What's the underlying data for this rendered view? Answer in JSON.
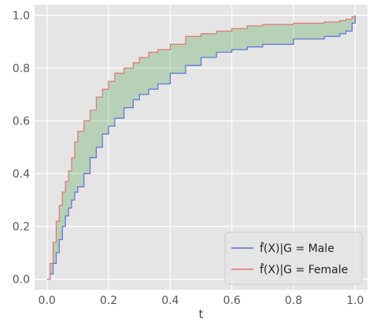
{
  "chart_data": {
    "type": "line",
    "title": "",
    "xlabel": "t",
    "ylabel": "",
    "xlim": [
      -0.04,
      1.04
    ],
    "ylim": [
      -0.04,
      1.04
    ],
    "xticks": [
      0.0,
      0.2,
      0.4,
      0.6,
      0.8,
      1.0
    ],
    "xtick_labels": [
      "0.0",
      "0.2",
      "0.4",
      "0.6",
      "0.8",
      "1.0"
    ],
    "yticks": [
      0.0,
      0.2,
      0.4,
      0.6,
      0.8,
      1.0
    ],
    "ytick_labels": [
      "0.0",
      "0.2",
      "0.4",
      "0.6",
      "0.8",
      "1.0"
    ],
    "grid": true,
    "legend_position": "lower-right",
    "fill_between": {
      "color": "#008000",
      "opacity": 0.2
    },
    "series": [
      {
        "name": "f̂(X)|G = Male",
        "color": "#5b6fd6",
        "x": [
          0.0,
          0.01,
          0.02,
          0.03,
          0.04,
          0.05,
          0.06,
          0.07,
          0.08,
          0.09,
          0.1,
          0.12,
          0.14,
          0.16,
          0.18,
          0.2,
          0.22,
          0.25,
          0.28,
          0.3,
          0.33,
          0.36,
          0.4,
          0.45,
          0.5,
          0.55,
          0.6,
          0.65,
          0.7,
          0.8,
          0.9,
          0.95,
          0.97,
          0.99,
          1.0
        ],
        "y": [
          0.0,
          0.02,
          0.06,
          0.1,
          0.15,
          0.2,
          0.24,
          0.27,
          0.3,
          0.33,
          0.35,
          0.4,
          0.46,
          0.5,
          0.55,
          0.58,
          0.61,
          0.65,
          0.68,
          0.7,
          0.72,
          0.74,
          0.78,
          0.81,
          0.84,
          0.86,
          0.87,
          0.88,
          0.89,
          0.91,
          0.92,
          0.93,
          0.94,
          0.97,
          1.0
        ]
      },
      {
        "name": "f̂(X)|G = Female",
        "color": "#e37373",
        "x": [
          0.0,
          0.01,
          0.02,
          0.03,
          0.04,
          0.05,
          0.06,
          0.07,
          0.08,
          0.09,
          0.1,
          0.12,
          0.14,
          0.16,
          0.18,
          0.2,
          0.22,
          0.25,
          0.28,
          0.3,
          0.33,
          0.36,
          0.4,
          0.45,
          0.5,
          0.55,
          0.6,
          0.65,
          0.7,
          0.8,
          0.9,
          0.95,
          0.97,
          0.99,
          1.0
        ],
        "y": [
          0.0,
          0.06,
          0.14,
          0.22,
          0.28,
          0.33,
          0.37,
          0.41,
          0.46,
          0.52,
          0.56,
          0.6,
          0.64,
          0.69,
          0.72,
          0.75,
          0.78,
          0.8,
          0.82,
          0.84,
          0.86,
          0.87,
          0.89,
          0.92,
          0.93,
          0.94,
          0.95,
          0.96,
          0.965,
          0.97,
          0.975,
          0.98,
          0.985,
          0.995,
          1.0
        ]
      }
    ]
  }
}
